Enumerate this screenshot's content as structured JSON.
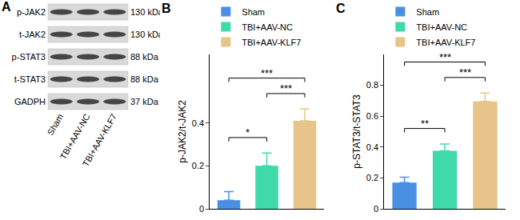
{
  "blot": {
    "label": "A",
    "rows": [
      {
        "name": "p-JAK2",
        "size": "130 kDa"
      },
      {
        "name": "t-JAK2",
        "size": "130 kDa"
      },
      {
        "name": "p-STAT3",
        "size": "88 kDa"
      },
      {
        "name": "t-STAT3",
        "size": "88 kDa"
      },
      {
        "name": "GADPH",
        "size": "37 kDa"
      }
    ],
    "lanes": [
      "Sham",
      "TBI+AAV-NC",
      "TBI+AAV-KLF7"
    ]
  },
  "chart_data": [
    {
      "type": "bar",
      "ylabel": "p-JAK2/t-JAK2",
      "categories": [
        "Sham",
        "TBI+AAV-NC",
        "TBI+AAV-KLF7"
      ],
      "values": [
        0.04,
        0.2,
        0.41
      ],
      "errors": [
        0.04,
        0.06,
        0.055
      ],
      "colors": [
        "#4a90e2",
        "#40d9a8",
        "#e6c48a"
      ],
      "ylim": [
        0,
        0.72
      ],
      "yticks": [
        0,
        0.2,
        0.4
      ],
      "grid": false,
      "legend": "top left",
      "tick_labels": "y",
      "annotations": [
        {
          "text": "B"
        },
        {
          "text": "*",
          "between": [
            "Sham",
            "TBI+AAV-NC"
          ]
        },
        {
          "text": "***",
          "between": [
            "TBI+AAV-NC",
            "TBI+AAV-KLF7"
          ]
        },
        {
          "text": "***",
          "between": [
            "Sham",
            "TBI+AAV-KLF7"
          ]
        }
      ]
    },
    {
      "type": "bar",
      "ylabel": "p-STAT3/t-STAT3",
      "categories": [
        "Sham",
        "TBI+AAV-NC",
        "TBI+AAV-KLF7"
      ],
      "values": [
        0.17,
        0.375,
        0.695
      ],
      "errors": [
        0.035,
        0.045,
        0.055
      ],
      "colors": [
        "#4a90e2",
        "#40d9a8",
        "#e6c48a"
      ],
      "ylim": [
        0,
        1.0
      ],
      "yticks": [
        0,
        0.2,
        0.4,
        0.6,
        0.8
      ],
      "grid": false,
      "legend": "top left",
      "tick_labels": "y",
      "annotations": [
        {
          "text": "C"
        },
        {
          "text": "**",
          "between": [
            "Sham",
            "TBI+AAV-NC"
          ]
        },
        {
          "text": "***",
          "between": [
            "TBI+AAV-NC",
            "TBI+AAV-KLF7"
          ]
        },
        {
          "text": "***",
          "between": [
            "Sham",
            "TBI+AAV-KLF7"
          ]
        }
      ]
    }
  ]
}
